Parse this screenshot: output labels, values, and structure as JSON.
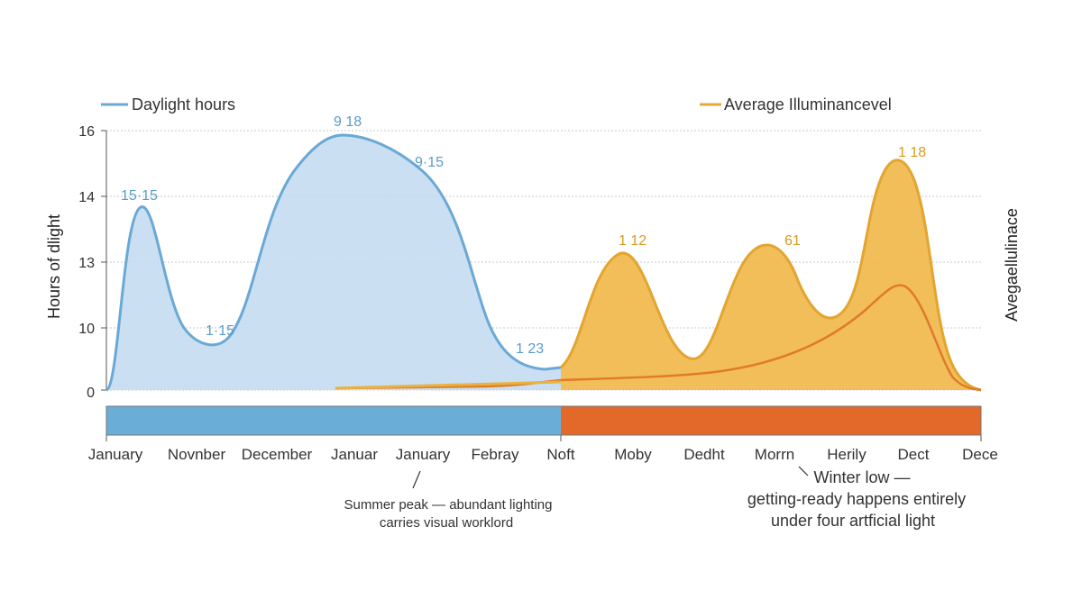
{
  "chart_data": {
    "type": "area",
    "legend": {
      "left": "Daylight hours",
      "right": "Average Illuminancevel"
    },
    "y_left_ticks": [
      "16",
      "14",
      "13",
      "10",
      "0"
    ],
    "ylabel": "Hours of dlight",
    "ylabel_right": "Avegaellulinace",
    "x_labels": [
      "January",
      "Novnber",
      "December",
      "Januar",
      "January",
      "Febray",
      "Noft",
      "Moby",
      "Dedht",
      "Morrn",
      "Herily",
      "Dect",
      "Dece"
    ],
    "series": [
      {
        "name": "Daylight hours",
        "color": "#6aa8d6",
        "peaks": [
          {
            "label": "15·15",
            "value": 13.8
          },
          {
            "label": "1·15",
            "value": 9.9
          },
          {
            "label": "9 18",
            "value": 15.9
          },
          {
            "label": "9·15",
            "value": 14.9
          },
          {
            "label": "1 23",
            "value": 5.4
          }
        ]
      },
      {
        "name": "Average Illuminancevel",
        "color": "#f0b43c",
        "peaks": [
          {
            "label": "1 12",
            "value": 12.2
          },
          {
            "label": "61",
            "value": 12.3
          },
          {
            "label": "1 18",
            "value": 15.2
          }
        ]
      }
    ],
    "band": {
      "left_color": "#6aaed8",
      "right_color": "#e2692a"
    },
    "annotations": {
      "summer": [
        "Summer peak — abundant lighting",
        "carries visual worklord"
      ],
      "winter": [
        "Winter low —",
        "getting-ready happens entirely",
        "under four artficial light"
      ]
    },
    "grid": true
  }
}
